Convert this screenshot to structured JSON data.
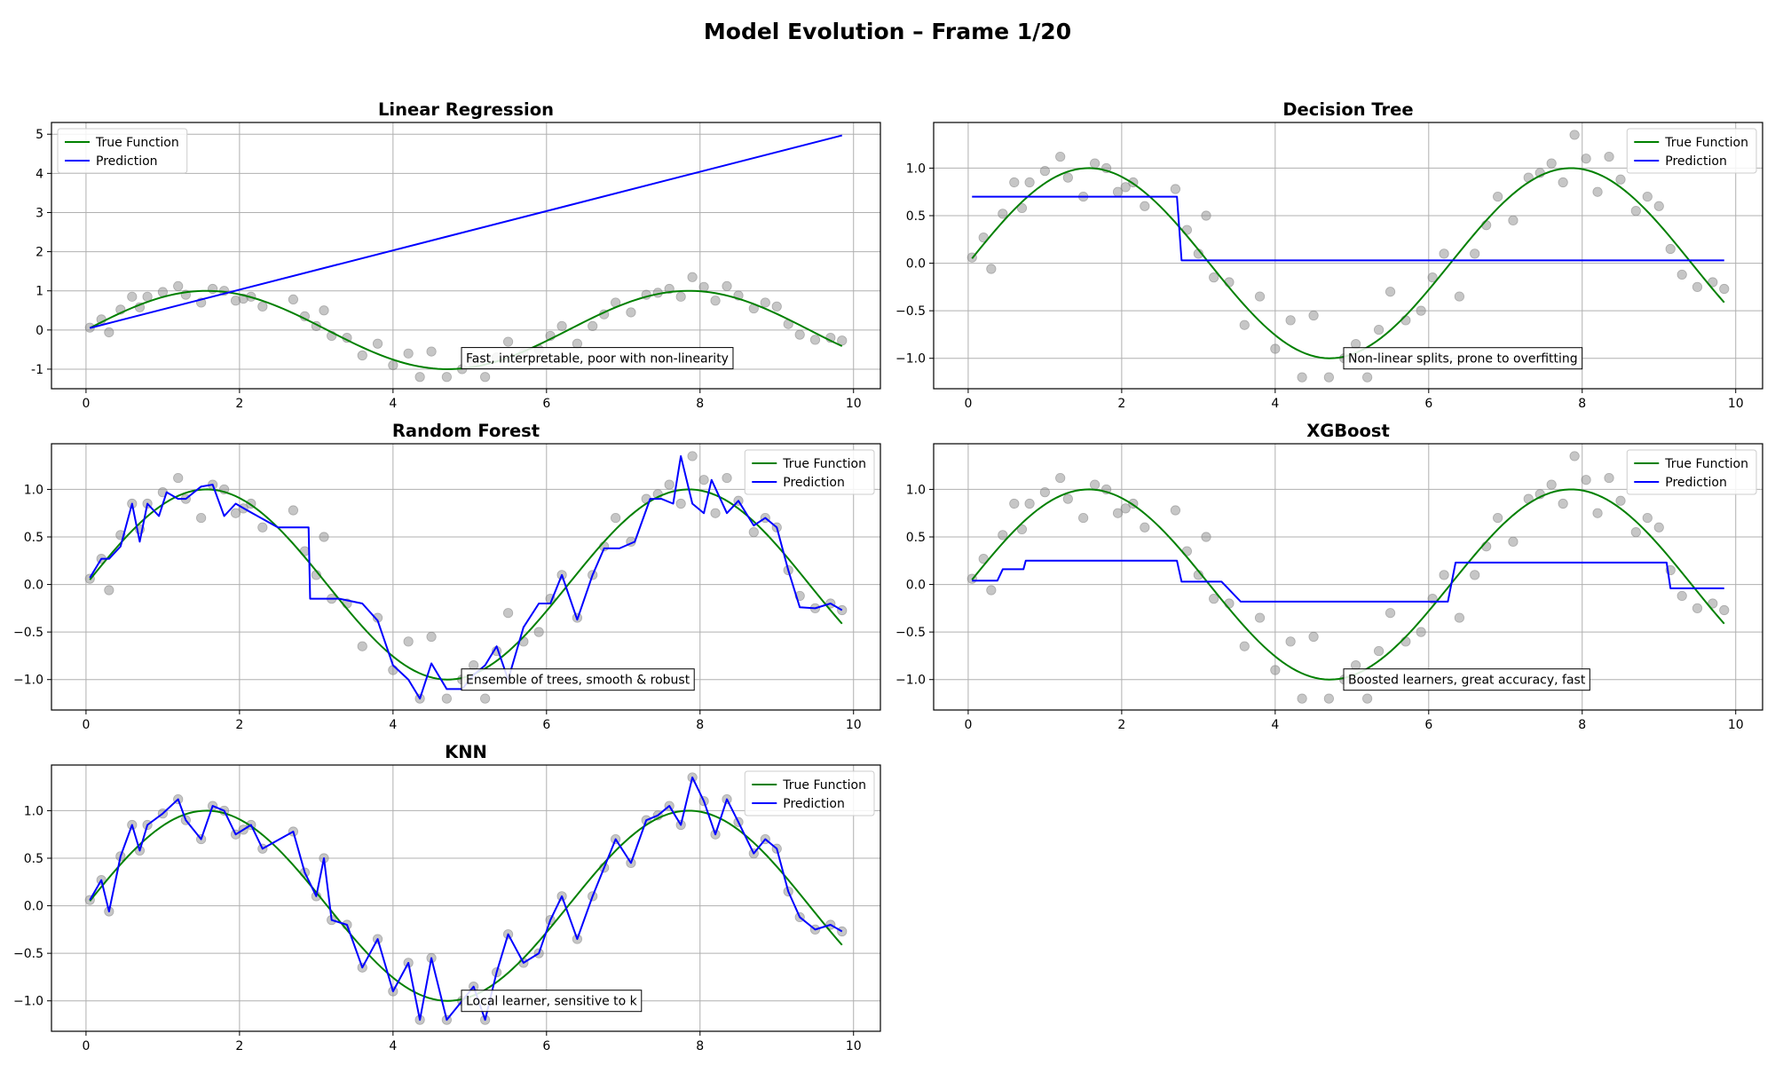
{
  "figure": {
    "title": "Model Evolution – Frame 1/20"
  },
  "legend_labels": {
    "true_function": "True Function",
    "prediction": "Prediction"
  },
  "colors": {
    "true_function": "#008000",
    "prediction": "#0000ff",
    "points": "#808080",
    "grid": "#b0b0b0"
  },
  "scatter": {
    "x": [
      0.05,
      0.2,
      0.3,
      0.45,
      0.6,
      0.7,
      0.8,
      1.0,
      1.2,
      1.3,
      1.5,
      1.65,
      1.8,
      1.95,
      2.05,
      2.15,
      2.3,
      2.7,
      2.85,
      3.0,
      3.1,
      3.2,
      3.4,
      3.6,
      3.8,
      4.0,
      4.2,
      4.35,
      4.5,
      4.7,
      4.9,
      5.05,
      5.2,
      5.35,
      5.5,
      5.7,
      5.9,
      6.05,
      6.2,
      6.4,
      6.6,
      6.75,
      6.9,
      7.1,
      7.3,
      7.45,
      7.6,
      7.75,
      7.9,
      8.05,
      8.2,
      8.35,
      8.5,
      8.7,
      8.85,
      9.0,
      9.15,
      9.3,
      9.5,
      9.7,
      9.85
    ],
    "y": [
      0.06,
      0.27,
      -0.06,
      0.52,
      0.85,
      0.58,
      0.85,
      0.97,
      1.12,
      0.9,
      0.7,
      1.05,
      1.0,
      0.75,
      0.8,
      0.85,
      0.6,
      0.78,
      0.35,
      0.1,
      0.5,
      -0.15,
      -0.2,
      -0.65,
      -0.35,
      -0.9,
      -0.6,
      -1.2,
      -0.55,
      -1.2,
      -1.0,
      -0.85,
      -1.2,
      -0.7,
      -0.3,
      -0.6,
      -0.5,
      -0.15,
      0.1,
      -0.35,
      0.1,
      0.4,
      0.7,
      0.45,
      0.9,
      0.95,
      1.05,
      0.85,
      1.35,
      1.1,
      0.75,
      1.12,
      0.88,
      0.55,
      0.7,
      0.6,
      0.15,
      -0.12,
      -0.25,
      -0.2,
      -0.27
    ]
  },
  "true_function": {
    "expression": "sin(x)",
    "x_range": [
      0.05,
      9.85
    ]
  },
  "chart_data": [
    {
      "type": "line",
      "title": "Linear Regression",
      "xlim": [
        -0.45,
        10.35
      ],
      "ylim": [
        -1.5,
        5.3
      ],
      "xticks": [
        0,
        2,
        4,
        6,
        8,
        10
      ],
      "yticks": [
        -1,
        0,
        1,
        2,
        3,
        4,
        5
      ],
      "grid": true,
      "legend": "top-left",
      "annotation": {
        "text": "Fast, interpretable, poor with non-linearity",
        "x": 4.95,
        "y": -0.72
      },
      "series": [
        {
          "name": "True Function",
          "kind": "function",
          "expression": "sin(x)"
        },
        {
          "name": "Prediction",
          "x": [
            0.05,
            9.85
          ],
          "y": [
            0.05,
            4.97
          ]
        }
      ],
      "scatter": "shared"
    },
    {
      "type": "line",
      "title": "Decision Tree",
      "xlim": [
        -0.45,
        10.35
      ],
      "ylim": [
        -1.32,
        1.48
      ],
      "xticks": [
        0,
        2,
        4,
        6,
        8,
        10
      ],
      "yticks": [
        -1.0,
        -0.5,
        0.0,
        0.5,
        1.0
      ],
      "grid": true,
      "legend": "top-right",
      "annotation": {
        "text": "Non-linear splits, prone to overfitting",
        "x": 4.95,
        "y": -1.0
      },
      "series": [
        {
          "name": "True Function",
          "kind": "function",
          "expression": "sin(x)"
        },
        {
          "name": "Prediction",
          "x": [
            0.05,
            2.72,
            2.78,
            9.85
          ],
          "y": [
            0.7,
            0.7,
            0.03,
            0.03
          ]
        }
      ],
      "scatter": "shared"
    },
    {
      "type": "line",
      "title": "Random Forest",
      "xlim": [
        -0.45,
        10.35
      ],
      "ylim": [
        -1.32,
        1.48
      ],
      "xticks": [
        0,
        2,
        4,
        6,
        8,
        10
      ],
      "yticks": [
        -1.0,
        -0.5,
        0.0,
        0.5,
        1.0
      ],
      "grid": true,
      "legend": "top-right",
      "annotation": {
        "text": "Ensemble of trees, smooth & robust",
        "x": 4.95,
        "y": -1.0
      },
      "series": [
        {
          "name": "True Function",
          "kind": "function",
          "expression": "sin(x)"
        },
        {
          "name": "Prediction",
          "x": [
            0.05,
            0.2,
            0.3,
            0.45,
            0.6,
            0.7,
            0.8,
            0.95,
            1.05,
            1.2,
            1.3,
            1.5,
            1.65,
            1.8,
            1.95,
            2.1,
            2.5,
            2.9,
            2.92,
            3.3,
            3.6,
            3.8,
            4.0,
            4.2,
            4.35,
            4.5,
            4.7,
            4.9,
            5.05,
            5.2,
            5.35,
            5.5,
            5.7,
            5.9,
            6.05,
            6.2,
            6.4,
            6.6,
            6.75,
            6.95,
            7.15,
            7.35,
            7.5,
            7.65,
            7.75,
            7.9,
            8.05,
            8.15,
            8.35,
            8.5,
            8.7,
            8.85,
            9.0,
            9.15,
            9.3,
            9.5,
            9.7,
            9.85
          ],
          "y": [
            0.07,
            0.27,
            0.27,
            0.4,
            0.85,
            0.45,
            0.85,
            0.72,
            0.97,
            0.9,
            0.9,
            1.03,
            1.05,
            0.72,
            0.85,
            0.78,
            0.6,
            0.6,
            -0.15,
            -0.15,
            -0.2,
            -0.38,
            -0.85,
            -1.0,
            -1.2,
            -0.83,
            -1.1,
            -1.1,
            -0.95,
            -0.85,
            -0.65,
            -1.0,
            -0.45,
            -0.2,
            -0.2,
            0.1,
            -0.37,
            0.1,
            0.38,
            0.38,
            0.45,
            0.9,
            0.9,
            0.85,
            1.35,
            0.85,
            0.75,
            1.1,
            0.75,
            0.88,
            0.62,
            0.7,
            0.6,
            0.15,
            -0.24,
            -0.25,
            -0.2,
            -0.27
          ]
        }
      ],
      "scatter": "shared"
    },
    {
      "type": "line",
      "title": "XGBoost",
      "xlim": [
        -0.45,
        10.35
      ],
      "ylim": [
        -1.32,
        1.48
      ],
      "xticks": [
        0,
        2,
        4,
        6,
        8,
        10
      ],
      "yticks": [
        -1.0,
        -0.5,
        0.0,
        0.5,
        1.0
      ],
      "grid": true,
      "legend": "top-right",
      "annotation": {
        "text": "Boosted learners, great accuracy, fast",
        "x": 4.95,
        "y": -1.0
      },
      "series": [
        {
          "name": "True Function",
          "kind": "function",
          "expression": "sin(x)"
        },
        {
          "name": "Prediction",
          "x": [
            0.05,
            0.38,
            0.45,
            0.72,
            0.75,
            2.72,
            2.78,
            3.3,
            3.55,
            3.6,
            6.25,
            6.35,
            9.1,
            9.15,
            9.85
          ],
          "y": [
            0.04,
            0.04,
            0.16,
            0.16,
            0.25,
            0.25,
            0.03,
            0.03,
            -0.18,
            -0.18,
            -0.18,
            0.23,
            0.23,
            -0.04,
            -0.04
          ]
        }
      ],
      "scatter": "shared"
    },
    {
      "type": "line",
      "title": "KNN",
      "xlim": [
        -0.45,
        10.35
      ],
      "ylim": [
        -1.32,
        1.48
      ],
      "xticks": [
        0,
        2,
        4,
        6,
        8,
        10
      ],
      "yticks": [
        -1.0,
        -0.5,
        0.0,
        0.5,
        1.0
      ],
      "grid": true,
      "legend": "top-right",
      "annotation": {
        "text": "Local learner, sensitive to k",
        "x": 4.95,
        "y": -1.0
      },
      "series": [
        {
          "name": "True Function",
          "kind": "function",
          "expression": "sin(x)"
        },
        {
          "name": "Prediction",
          "kind": "follows_scatter"
        }
      ],
      "scatter": "shared"
    }
  ]
}
